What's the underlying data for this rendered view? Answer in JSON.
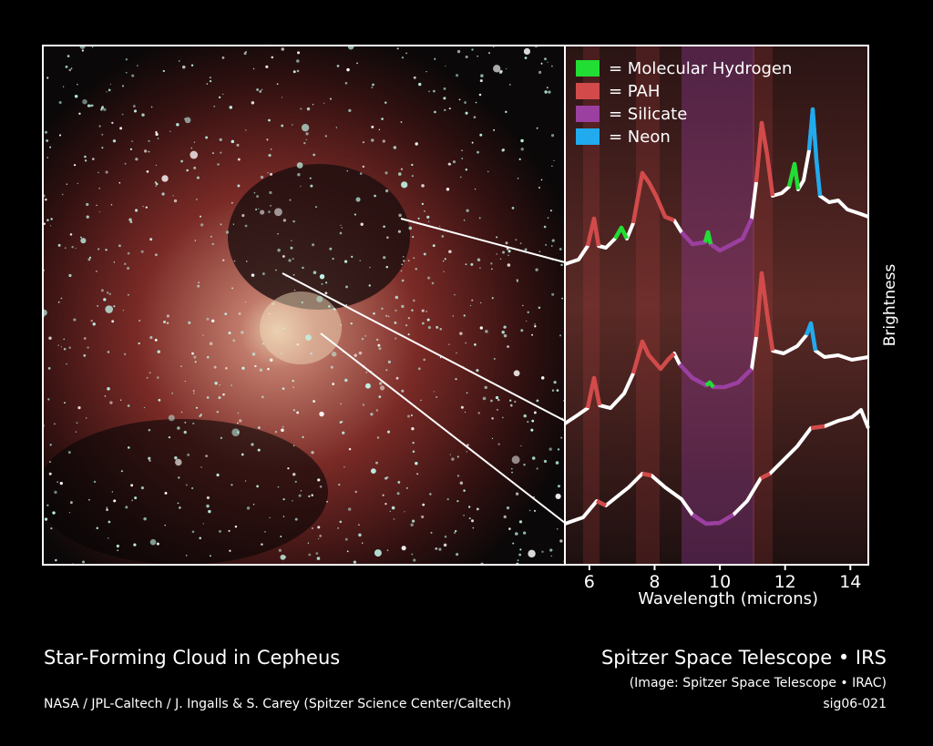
{
  "legend": [
    {
      "label": "= Molecular Hydrogen",
      "color": "#22dd33"
    },
    {
      "label": "= PAH",
      "color": "#d24a4a"
    },
    {
      "label": "= Silicate",
      "color": "#9b3fa0"
    },
    {
      "label": "= Neon",
      "color": "#22aaee"
    }
  ],
  "x_axis": {
    "label": "Wavelength (microns)",
    "xlim": [
      5.25,
      14.55
    ],
    "ticks": [
      6,
      8,
      10,
      12,
      14
    ]
  },
  "y_axis": {
    "label": "Brightness"
  },
  "captions": {
    "title": "Star-Forming Cloud in Cepheus",
    "credit": "NASA / JPL-Caltech / J. Ingalls & S. Carey (Spitzer Science Center/Caltech)",
    "instrument": "Spitzer Space Telescope • IRS",
    "image_credit": "(Image: Spitzer Space Telescope • IRAC)",
    "id": "sig06-021"
  }
}
